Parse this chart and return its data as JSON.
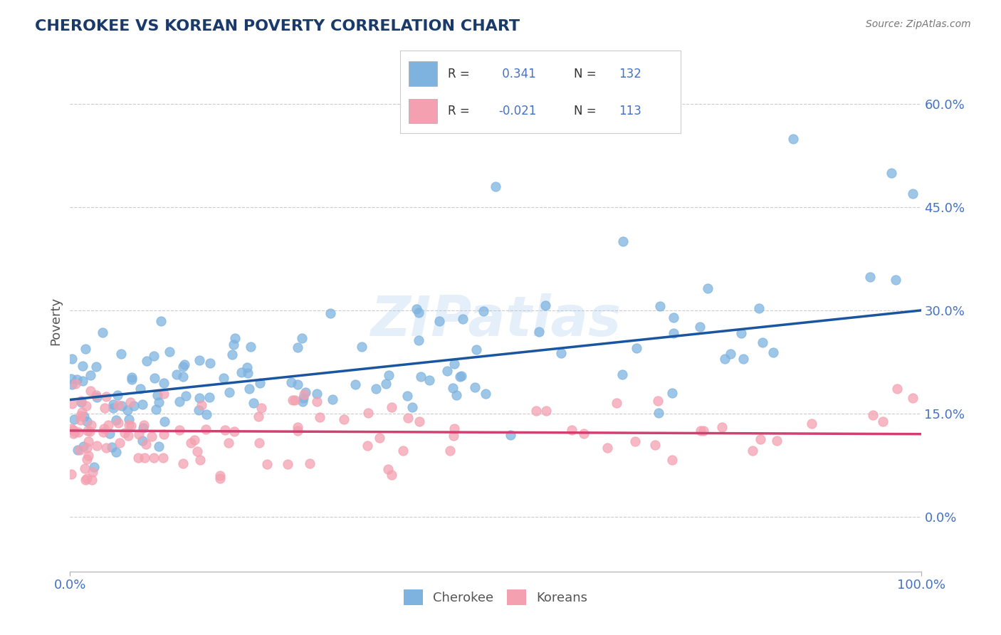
{
  "title": "CHEROKEE VS KOREAN POVERTY CORRELATION CHART",
  "source": "Source: ZipAtlas.com",
  "ylabel": "Poverty",
  "xlim": [
    0,
    100
  ],
  "ylim": [
    -8,
    65
  ],
  "yticks": [
    0,
    15,
    30,
    45,
    60
  ],
  "cherokee_color": "#7EB3E0",
  "korean_color": "#F4A0B0",
  "cherokee_line_color": "#1A55A0",
  "korean_line_color": "#D04070",
  "background_color": "#FFFFFF",
  "grid_color": "#AAAAAA",
  "title_color": "#1a3a6b",
  "tick_color": "#4472C4",
  "R_cherokee": 0.341,
  "N_cherokee": 132,
  "R_korean": -0.021,
  "N_korean": 113,
  "cherokee_line_start_y": 17.0,
  "cherokee_line_end_y": 30.0,
  "korean_line_start_y": 12.5,
  "korean_line_end_y": 12.0
}
